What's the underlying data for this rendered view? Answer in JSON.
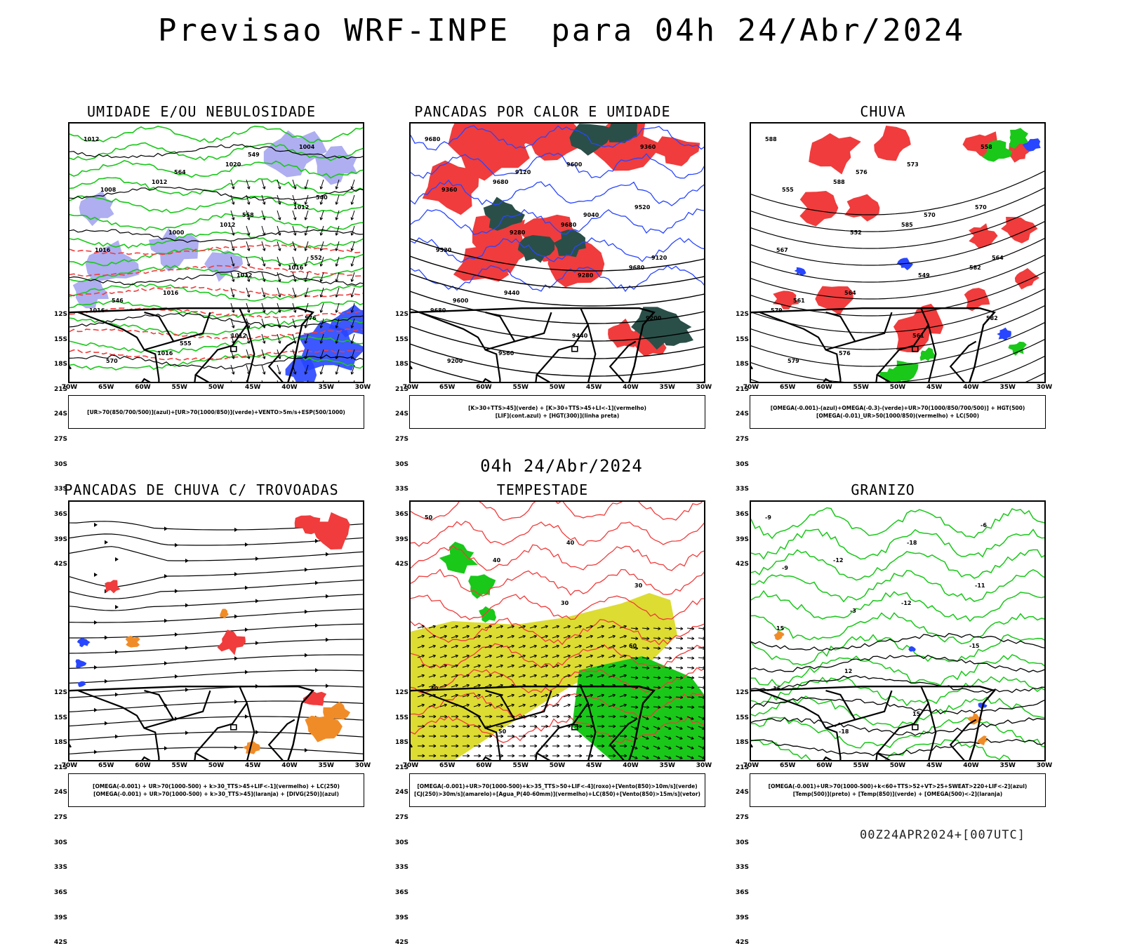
{
  "header": {
    "title": "Previsao WRF-INPE  para 04h 24/Abr/2024"
  },
  "middle": {
    "subtitle": "04h 24/Abr/2024"
  },
  "footer": {
    "run": "00Z24APR2024+[007UTC]"
  },
  "axes": {
    "lat_labels": [
      "12S",
      "15S",
      "18S",
      "21S",
      "24S",
      "27S",
      "30S",
      "33S",
      "36S",
      "39S",
      "42S"
    ],
    "lon_labels": [
      "70W",
      "65W",
      "60W",
      "55W",
      "50W",
      "45W",
      "40W",
      "35W",
      "30W"
    ]
  },
  "colors": {
    "red": "#f03c3c",
    "green": "#19c819",
    "blue": "#2846ff",
    "lavender": "#a0a0ee",
    "darkteal": "#2a4f48",
    "yellow": "#dcdc32",
    "orange": "#f08c28",
    "black": "#000000"
  },
  "panels": [
    {
      "title": "UMIDADE E/OU NEBULOSIDADE",
      "legend": [
        "[UR>70(850/700/500)](azul)+[UR>70(1000/850)](verde)+VENTO>5m/s+ESP(500/1000)"
      ],
      "labels": [
        "1012",
        "1012",
        "1012",
        "1016",
        "1016",
        "1016",
        "1020",
        "1012",
        "1016",
        "1016",
        "1012",
        "1004",
        "1008",
        "1000",
        "1012",
        "576",
        "570",
        "564",
        "558",
        "552",
        "546",
        "555",
        "549",
        "540"
      ]
    },
    {
      "title": "PANCADAS POR CALOR E UMIDADE",
      "legend": [
        "[K>30+TTS>45](verde) + [K>30+TTS>45+LI<-1](vermelho)",
        "[LIF](cont.azul) + [HGT(300)](linha preta)"
      ],
      "labels": [
        "9680",
        "9680",
        "9680",
        "9680",
        "9680",
        "9560",
        "9600",
        "9520",
        "9520",
        "9440",
        "9440",
        "9360",
        "9360",
        "9280",
        "9280",
        "9200",
        "9200",
        "9120",
        "9040",
        "9120",
        "9600"
      ]
    },
    {
      "title": "CHUVA",
      "legend": [
        "[OMEGA(-0.001)-(azul)+OMEGA(-0.3)-(verde)+UR>70(1000/850/700/500)] + HGT(500)",
        "[OMEGA(-0.01)_UR>50(1000/850)(vermelho) + LC(500)"
      ],
      "labels": [
        "588",
        "588",
        "585",
        "582",
        "579",
        "576",
        "573",
        "570",
        "567",
        "564",
        "561",
        "558",
        "555",
        "552",
        "549",
        "582",
        "579",
        "576",
        "570",
        "564",
        "561"
      ]
    },
    {
      "title": "PANCADAS DE CHUVA C/ TROVOADAS",
      "legend": [
        "[OMEGA(-0.001) + UR>70(1000-500) + k>30_TTS>45+LIF<-1](vermelho) + LC(250)",
        "[OMEGA(-0.001) + UR>70(1000-500) + k>30_TTS>45](laranja) + [DIVG(250)](azul)"
      ],
      "labels": []
    },
    {
      "title": "TEMPESTADE",
      "legend": [
        "[OMEGA(-0.001)+UR>70(1000-500)+k>35_TTS>50+LIF<-4](roxo)+[Vento(850)>10m/s](verde)",
        "[CJ(250)>30m/s](amarelo)+[Agua_P(40-60mm)](vermelho)+LC(850)+[Vento(850)>15m/s](vetor)"
      ],
      "labels": [
        "50",
        "40",
        "30",
        "60",
        "40",
        "50",
        "40",
        "30"
      ]
    },
    {
      "title": "GRANIZO",
      "legend": [
        "[OMEGA(-0.001)+UR>70(1000-500)+k<60+TTS>52+VT>25+SWEAT>220+LIF<-2](azul)",
        "[Temp(500)](preto) + [Temp(850)](verde) + [OMEGA(500)<-2](laranja)"
      ],
      "labels": [
        "-9",
        "-12",
        "-12",
        "-15",
        "-15",
        "-18",
        "-18",
        "-11",
        "15",
        "12",
        "15",
        "-6",
        "-9",
        "-3"
      ]
    }
  ]
}
